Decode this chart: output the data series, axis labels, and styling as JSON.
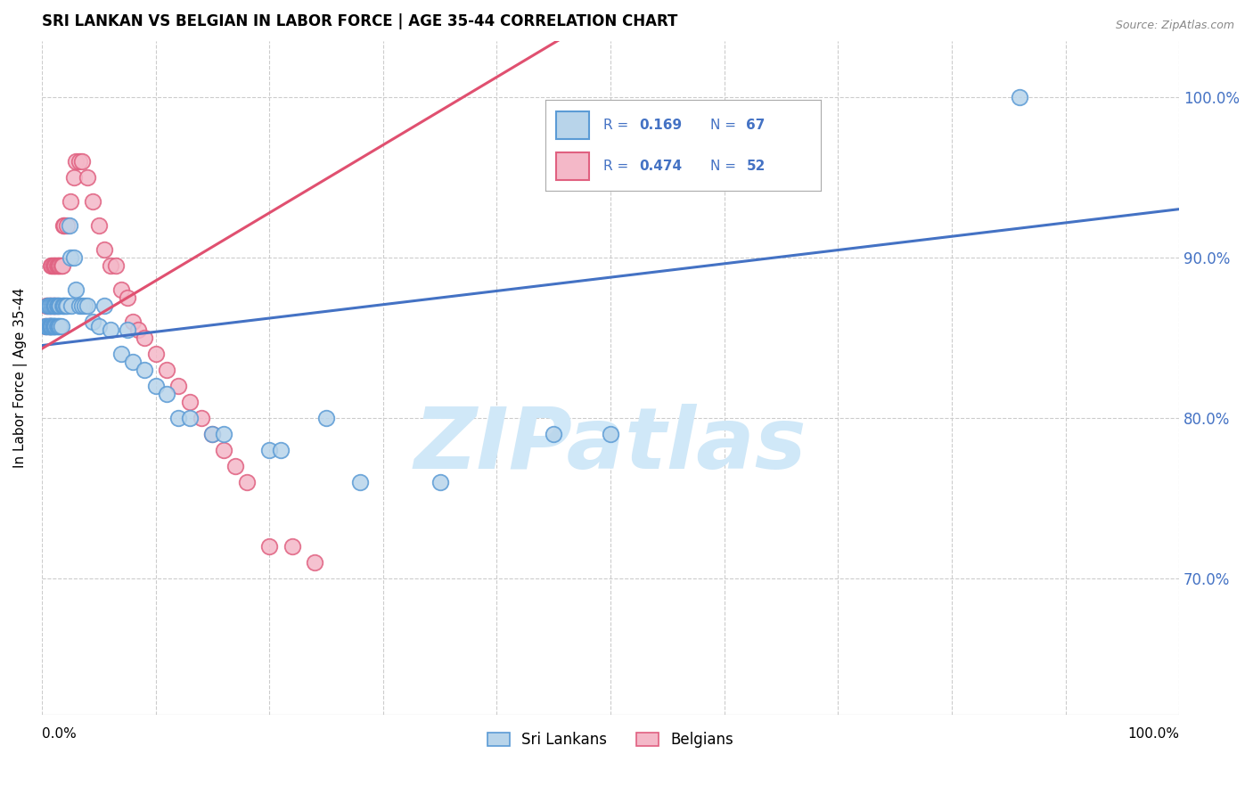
{
  "title": "SRI LANKAN VS BELGIAN IN LABOR FORCE | AGE 35-44 CORRELATION CHART",
  "source": "Source: ZipAtlas.com",
  "ylabel": "In Labor Force | Age 35-44",
  "y_tick_labels": [
    "100.0%",
    "90.0%",
    "80.0%",
    "70.0%"
  ],
  "y_tick_values": [
    1.0,
    0.9,
    0.8,
    0.7
  ],
  "x_range": [
    0.0,
    1.0
  ],
  "y_range": [
    0.615,
    1.035
  ],
  "legend_r1": "R = 0.169",
  "legend_n1": "N = 67",
  "legend_r2": "R = 0.474",
  "legend_n2": "N = 52",
  "sri_lankan_fill": "#b8d4ea",
  "sri_lankan_edge": "#5b9bd5",
  "belgian_fill": "#f4b8c8",
  "belgian_edge": "#e06080",
  "sri_lankan_line_color": "#4472c4",
  "belgian_line_color": "#e05070",
  "watermark_color": "#d0e8f8",
  "blue_label_color": "#4472c4",
  "sri_lankans_x": [
    0.003,
    0.004,
    0.005,
    0.005,
    0.006,
    0.006,
    0.007,
    0.007,
    0.007,
    0.008,
    0.008,
    0.009,
    0.009,
    0.009,
    0.01,
    0.01,
    0.01,
    0.011,
    0.011,
    0.011,
    0.012,
    0.012,
    0.013,
    0.013,
    0.014,
    0.014,
    0.015,
    0.015,
    0.016,
    0.016,
    0.017,
    0.018,
    0.019,
    0.02,
    0.021,
    0.022,
    0.024,
    0.025,
    0.026,
    0.028,
    0.03,
    0.033,
    0.035,
    0.038,
    0.04,
    0.045,
    0.05,
    0.055,
    0.06,
    0.07,
    0.075,
    0.08,
    0.09,
    0.1,
    0.11,
    0.12,
    0.13,
    0.15,
    0.16,
    0.2,
    0.21,
    0.25,
    0.28,
    0.35,
    0.45,
    0.5,
    0.86
  ],
  "sri_lankans_y": [
    0.857,
    0.857,
    0.87,
    0.857,
    0.857,
    0.87,
    0.857,
    0.87,
    0.857,
    0.857,
    0.857,
    0.857,
    0.87,
    0.857,
    0.857,
    0.87,
    0.857,
    0.857,
    0.87,
    0.857,
    0.857,
    0.87,
    0.857,
    0.87,
    0.857,
    0.87,
    0.857,
    0.87,
    0.87,
    0.857,
    0.857,
    0.87,
    0.87,
    0.87,
    0.87,
    0.87,
    0.92,
    0.9,
    0.87,
    0.9,
    0.88,
    0.87,
    0.87,
    0.87,
    0.87,
    0.86,
    0.857,
    0.87,
    0.855,
    0.84,
    0.855,
    0.835,
    0.83,
    0.82,
    0.815,
    0.8,
    0.8,
    0.79,
    0.79,
    0.78,
    0.78,
    0.8,
    0.76,
    0.76,
    0.79,
    0.79,
    1.0
  ],
  "belgians_x": [
    0.003,
    0.004,
    0.005,
    0.006,
    0.007,
    0.007,
    0.008,
    0.008,
    0.009,
    0.01,
    0.01,
    0.011,
    0.011,
    0.012,
    0.013,
    0.013,
    0.014,
    0.015,
    0.016,
    0.017,
    0.018,
    0.019,
    0.02,
    0.022,
    0.025,
    0.028,
    0.03,
    0.033,
    0.035,
    0.04,
    0.045,
    0.05,
    0.055,
    0.06,
    0.065,
    0.07,
    0.075,
    0.08,
    0.085,
    0.09,
    0.1,
    0.11,
    0.12,
    0.13,
    0.14,
    0.15,
    0.16,
    0.17,
    0.18,
    0.2,
    0.22,
    0.24
  ],
  "belgians_y": [
    0.857,
    0.87,
    0.87,
    0.857,
    0.87,
    0.857,
    0.87,
    0.895,
    0.895,
    0.895,
    0.87,
    0.895,
    0.87,
    0.895,
    0.895,
    0.87,
    0.895,
    0.895,
    0.895,
    0.895,
    0.895,
    0.92,
    0.92,
    0.92,
    0.935,
    0.95,
    0.96,
    0.96,
    0.96,
    0.95,
    0.935,
    0.92,
    0.905,
    0.895,
    0.895,
    0.88,
    0.875,
    0.86,
    0.855,
    0.85,
    0.84,
    0.83,
    0.82,
    0.81,
    0.8,
    0.79,
    0.78,
    0.77,
    0.76,
    0.72,
    0.72,
    0.71
  ],
  "sri_line_x0": 0.0,
  "sri_line_y0": 0.845,
  "sri_line_x1": 1.0,
  "sri_line_y1": 0.93,
  "bel_line_x0": 0.0,
  "bel_line_y0": 0.843,
  "bel_line_x1": 0.3,
  "bel_line_y1": 0.97
}
